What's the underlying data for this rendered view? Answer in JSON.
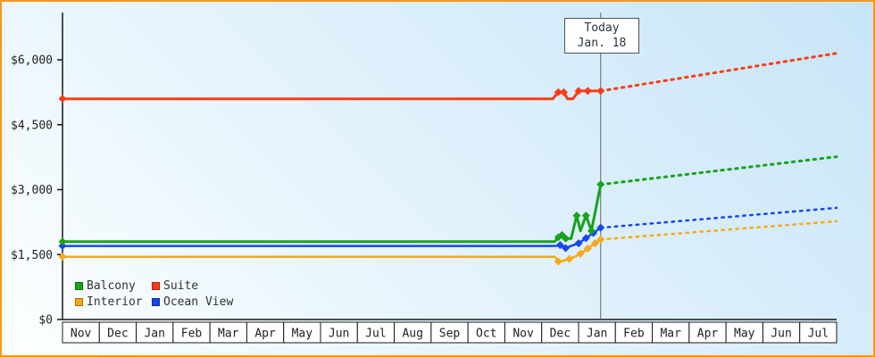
{
  "window": {
    "border_color": "#ff9517",
    "today_line_color": "#666666",
    "axis_color": "#14161a",
    "text_color": "#222222"
  },
  "chart_data": {
    "type": "line",
    "title": "",
    "today": {
      "label": "Today",
      "date": "Jan. 18",
      "x_month_index": 14.6
    },
    "x_axis": {
      "months": [
        "Nov",
        "Dec",
        "Jan",
        "Feb",
        "Mar",
        "Apr",
        "May",
        "Jun",
        "Jul",
        "Aug",
        "Sep",
        "Oct",
        "Nov",
        "Dec",
        "Jan",
        "Feb",
        "Mar",
        "Apr",
        "May",
        "Jun",
        "Jul"
      ]
    },
    "y_axis": {
      "range": [
        0,
        6500
      ],
      "ticks": [
        {
          "value": 0,
          "label": "$0"
        },
        {
          "value": 1500,
          "label": "$1,500"
        },
        {
          "value": 3000,
          "label": "$3,000"
        },
        {
          "value": 4500,
          "label": "$4,500"
        },
        {
          "value": 6000,
          "label": "$6,000"
        }
      ]
    },
    "series": [
      {
        "name": "Balcony",
        "color": "#17a31c",
        "line_width": 3,
        "history": [
          [
            0,
            1800
          ],
          [
            13.35,
            1800
          ],
          [
            13.45,
            1900
          ],
          [
            13.55,
            1950
          ],
          [
            13.65,
            1870
          ],
          [
            13.8,
            1870
          ],
          [
            13.95,
            2400
          ],
          [
            14.05,
            2050
          ],
          [
            14.2,
            2400
          ],
          [
            14.35,
            2050
          ],
          [
            14.6,
            3120
          ]
        ],
        "markers": [
          [
            0,
            1800
          ],
          [
            13.45,
            1900
          ],
          [
            13.55,
            1950
          ],
          [
            13.65,
            1870
          ],
          [
            13.95,
            2400
          ],
          [
            14.2,
            2400
          ],
          [
            14.35,
            2050
          ],
          [
            14.6,
            3120
          ]
        ],
        "forecast": [
          [
            14.6,
            3120
          ],
          [
            21,
            3760
          ]
        ]
      },
      {
        "name": "Suite",
        "color": "#fa3c16",
        "line_width": 3,
        "history": [
          [
            0,
            5100
          ],
          [
            13.3,
            5100
          ],
          [
            13.45,
            5250
          ],
          [
            13.6,
            5250
          ],
          [
            13.7,
            5100
          ],
          [
            13.85,
            5100
          ],
          [
            14.0,
            5280
          ],
          [
            14.25,
            5280
          ],
          [
            14.6,
            5280
          ]
        ],
        "markers": [
          [
            0,
            5100
          ],
          [
            13.45,
            5250
          ],
          [
            13.6,
            5250
          ],
          [
            14.0,
            5280
          ],
          [
            14.25,
            5280
          ],
          [
            14.6,
            5280
          ]
        ],
        "forecast": [
          [
            14.6,
            5280
          ],
          [
            21,
            6150
          ]
        ]
      },
      {
        "name": "Interior",
        "color": "#f8a818",
        "line_width": 2.5,
        "history": [
          [
            0,
            1450
          ],
          [
            13.35,
            1450
          ],
          [
            13.45,
            1340
          ],
          [
            13.6,
            1360
          ],
          [
            13.75,
            1400
          ],
          [
            13.9,
            1450
          ],
          [
            14.05,
            1520
          ],
          [
            14.25,
            1640
          ],
          [
            14.45,
            1760
          ],
          [
            14.6,
            1850
          ]
        ],
        "markers": [
          [
            0,
            1450
          ],
          [
            13.45,
            1340
          ],
          [
            13.75,
            1400
          ],
          [
            14.05,
            1520
          ],
          [
            14.25,
            1640
          ],
          [
            14.45,
            1760
          ],
          [
            14.6,
            1850
          ]
        ],
        "forecast": [
          [
            14.6,
            1850
          ],
          [
            21,
            2270
          ]
        ]
      },
      {
        "name": "Ocean View",
        "color": "#1746ec",
        "line_width": 2.5,
        "history": [
          [
            0,
            1700
          ],
          [
            13.35,
            1700
          ],
          [
            13.5,
            1720
          ],
          [
            13.65,
            1650
          ],
          [
            13.8,
            1700
          ],
          [
            14.0,
            1760
          ],
          [
            14.2,
            1880
          ],
          [
            14.4,
            2000
          ],
          [
            14.6,
            2120
          ]
        ],
        "markers": [
          [
            0,
            1700
          ],
          [
            13.5,
            1720
          ],
          [
            13.65,
            1650
          ],
          [
            14.0,
            1760
          ],
          [
            14.2,
            1880
          ],
          [
            14.4,
            2000
          ],
          [
            14.6,
            2120
          ]
        ],
        "forecast": [
          [
            14.6,
            2120
          ],
          [
            21,
            2580
          ]
        ]
      }
    ]
  }
}
